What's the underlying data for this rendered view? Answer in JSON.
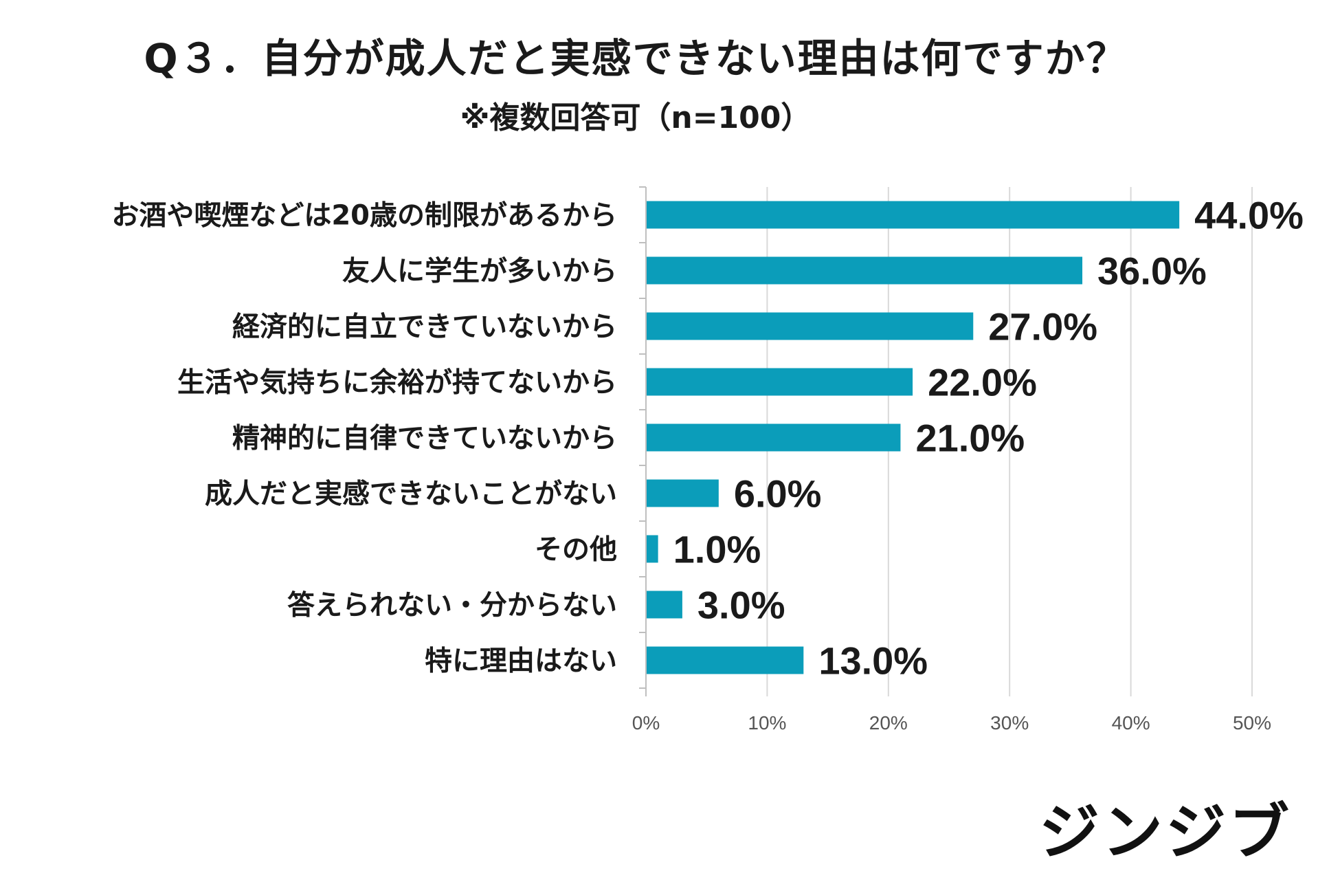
{
  "header": {
    "title": "Q３．自分が成人だと実感できない理由は何ですか？",
    "subtitle": "※複数回答可（n=100）"
  },
  "brand": {
    "logo_text": "ジンジブ"
  },
  "colors": {
    "bar": "#0b9dba",
    "grid": "#d9d9d9",
    "axis": "#bfbfbf"
  },
  "chart_data": {
    "type": "bar",
    "orientation": "horizontal",
    "categories": [
      "お酒や喫煙などは20歳の制限があるから",
      "友人に学生が多いから",
      "経済的に自立できていないから",
      "生活や気持ちに余裕が持てないから",
      "精神的に自律できていないから",
      "成人だと実感できないことがない",
      "その他",
      "答えられない・分からない",
      "特に理由はない"
    ],
    "values": [
      44.0,
      36.0,
      27.0,
      22.0,
      21.0,
      6.0,
      1.0,
      3.0,
      13.0
    ],
    "value_labels": [
      "44.0%",
      "36.0%",
      "27.0%",
      "22.0%",
      "21.0%",
      "6.0%",
      "1.0%",
      "3.0%",
      "13.0%"
    ],
    "xlim": [
      0,
      50
    ],
    "xticks": [
      "0%",
      "10%",
      "20%",
      "30%",
      "40%",
      "50%"
    ],
    "grid": true,
    "legend": "none"
  }
}
